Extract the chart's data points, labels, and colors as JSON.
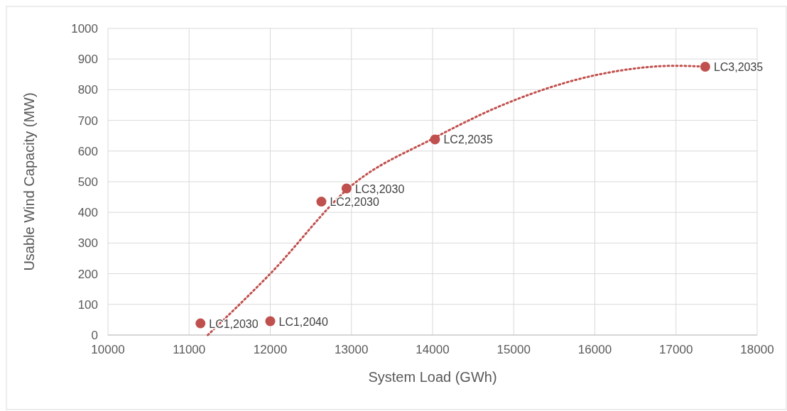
{
  "chart_data": {
    "type": "scatter",
    "xlabel": "System Load (GWh)",
    "ylabel": "Usable Wind Capacity (MW)",
    "xlim": [
      10000,
      18000
    ],
    "xticks": [
      10000,
      11000,
      12000,
      13000,
      14000,
      15000,
      16000,
      17000,
      18000
    ],
    "ylim": [
      0,
      1000
    ],
    "yticks": [
      0,
      100,
      200,
      300,
      400,
      500,
      600,
      700,
      800,
      900,
      1000
    ],
    "grid": true,
    "series": [
      {
        "color": "#c0504d",
        "marker": "circle",
        "x": [
          11140,
          12000,
          12630,
          12940,
          14030,
          17360
        ],
        "values": [
          38,
          45,
          435,
          478,
          638,
          875
        ]
      },
      {
        "type": "line",
        "color": "#c0504d",
        "line_style": "dotted",
        "x": [
          11230,
          12000,
          13000,
          14000,
          15000,
          16000,
          17000,
          17380
        ],
        "values": [
          0,
          200,
          487,
          640,
          765,
          847,
          878,
          875
        ]
      }
    ],
    "annotations": [
      {
        "text": "LC1,2030",
        "x": 11140,
        "y": 38
      },
      {
        "text": "LC1,2040",
        "x": 12000,
        "y": 45
      },
      {
        "text": "LC2,2030",
        "x": 12630,
        "y": 435
      },
      {
        "text": "LC3,2030",
        "x": 12940,
        "y": 478
      },
      {
        "text": "LC2,2035",
        "x": 14030,
        "y": 638
      },
      {
        "text": "LC3,2035",
        "x": 17360,
        "y": 875
      }
    ]
  }
}
